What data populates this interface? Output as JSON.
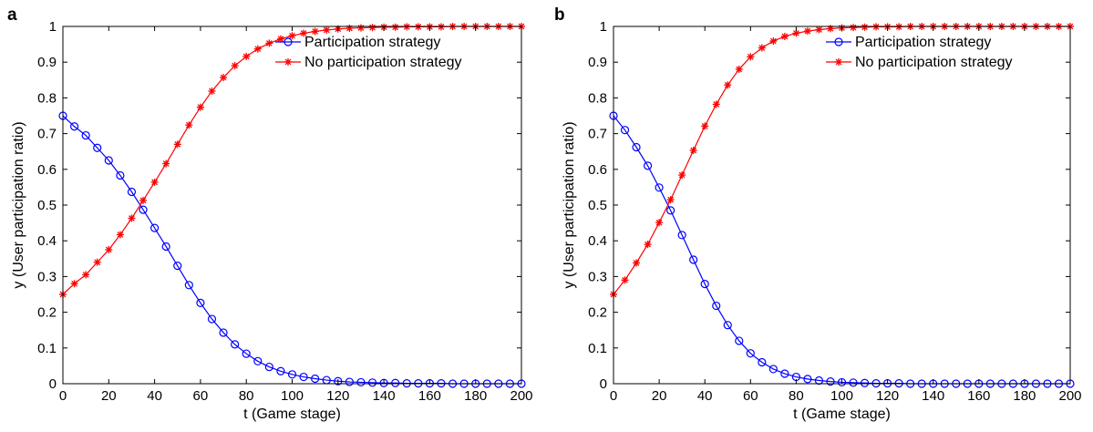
{
  "chart_data": [
    {
      "type": "line",
      "panel_label": "a",
      "xlabel": "t (Game stage)",
      "ylabel": "y (User participation ratio)",
      "xlim": [
        0,
        200
      ],
      "ylim": [
        0,
        1
      ],
      "xticks": [
        "0",
        "20",
        "40",
        "60",
        "80",
        "100",
        "120",
        "140",
        "160",
        "180",
        "200"
      ],
      "yticks": [
        "0",
        "0.1",
        "0.2",
        "0.3",
        "0.4",
        "0.5",
        "0.6",
        "0.7",
        "0.8",
        "0.9",
        "1"
      ],
      "grid": false,
      "legend_position": "top-right",
      "series": [
        {
          "name": "Participation strategy",
          "color": "#0000ff",
          "marker": "circle",
          "x": [
            0,
            5,
            10,
            15,
            20,
            25,
            30,
            35,
            40,
            45,
            50,
            55,
            60,
            65,
            70,
            75,
            80,
            85,
            90,
            95,
            100,
            105,
            110,
            115,
            120,
            125,
            130,
            135,
            140,
            145,
            150,
            155,
            160,
            165,
            170,
            175,
            180,
            185,
            190,
            195,
            200
          ],
          "y": [
            0.75,
            0.72,
            0.695,
            0.66,
            0.625,
            0.583,
            0.537,
            0.487,
            0.436,
            0.384,
            0.33,
            0.276,
            0.226,
            0.181,
            0.143,
            0.11,
            0.084,
            0.063,
            0.047,
            0.035,
            0.026,
            0.019,
            0.014,
            0.01,
            0.007,
            0.005,
            0.004,
            0.003,
            0.002,
            0.002,
            0.001,
            0.001,
            0.001,
            0.001,
            0,
            0,
            0,
            0,
            0,
            0,
            0
          ]
        },
        {
          "name": "No participation strategy",
          "color": "#ff0000",
          "marker": "asterisk",
          "x": [
            0,
            5,
            10,
            15,
            20,
            25,
            30,
            35,
            40,
            45,
            50,
            55,
            60,
            65,
            70,
            75,
            80,
            85,
            90,
            95,
            100,
            105,
            110,
            115,
            120,
            125,
            130,
            135,
            140,
            145,
            150,
            155,
            160,
            165,
            170,
            175,
            180,
            185,
            190,
            195,
            200
          ],
          "y": [
            0.25,
            0.28,
            0.305,
            0.34,
            0.375,
            0.417,
            0.463,
            0.513,
            0.564,
            0.616,
            0.67,
            0.724,
            0.774,
            0.819,
            0.857,
            0.89,
            0.916,
            0.937,
            0.953,
            0.965,
            0.974,
            0.981,
            0.986,
            0.99,
            0.993,
            0.995,
            0.996,
            0.997,
            0.998,
            0.998,
            0.999,
            0.999,
            0.999,
            0.999,
            1,
            1,
            1,
            1,
            1,
            1,
            1
          ]
        }
      ]
    },
    {
      "type": "line",
      "panel_label": "b",
      "xlabel": "t (Game stage)",
      "ylabel": "y (User participation ratio)",
      "xlim": [
        0,
        200
      ],
      "ylim": [
        0,
        1
      ],
      "xticks": [
        "0",
        "20",
        "40",
        "60",
        "80",
        "100",
        "120",
        "140",
        "160",
        "180",
        "200"
      ],
      "yticks": [
        "0",
        "0.1",
        "0.2",
        "0.3",
        "0.4",
        "0.5",
        "0.6",
        "0.7",
        "0.8",
        "0.9",
        "1"
      ],
      "grid": false,
      "legend_position": "top-right",
      "series": [
        {
          "name": "Participation strategy",
          "color": "#0000ff",
          "marker": "circle",
          "x": [
            0,
            5,
            10,
            15,
            20,
            25,
            30,
            35,
            40,
            45,
            50,
            55,
            60,
            65,
            70,
            75,
            80,
            85,
            90,
            95,
            100,
            105,
            110,
            115,
            120,
            125,
            130,
            135,
            140,
            145,
            150,
            155,
            160,
            165,
            170,
            175,
            180,
            185,
            190,
            195,
            200
          ],
          "y": [
            0.75,
            0.71,
            0.662,
            0.61,
            0.549,
            0.485,
            0.416,
            0.347,
            0.279,
            0.218,
            0.164,
            0.12,
            0.085,
            0.06,
            0.041,
            0.028,
            0.019,
            0.013,
            0.009,
            0.006,
            0.004,
            0.003,
            0.002,
            0.001,
            0.001,
            0.001,
            0,
            0,
            0,
            0,
            0,
            0,
            0,
            0,
            0,
            0,
            0,
            0,
            0,
            0,
            0
          ]
        },
        {
          "name": "No participation strategy",
          "color": "#ff0000",
          "marker": "asterisk",
          "x": [
            0,
            5,
            10,
            15,
            20,
            25,
            30,
            35,
            40,
            45,
            50,
            55,
            60,
            65,
            70,
            75,
            80,
            85,
            90,
            95,
            100,
            105,
            110,
            115,
            120,
            125,
            130,
            135,
            140,
            145,
            150,
            155,
            160,
            165,
            170,
            175,
            180,
            185,
            190,
            195,
            200
          ],
          "y": [
            0.25,
            0.29,
            0.338,
            0.39,
            0.451,
            0.515,
            0.584,
            0.653,
            0.721,
            0.782,
            0.836,
            0.88,
            0.915,
            0.94,
            0.959,
            0.972,
            0.981,
            0.987,
            0.991,
            0.994,
            0.996,
            0.997,
            0.998,
            0.999,
            0.999,
            0.999,
            1,
            1,
            1,
            1,
            1,
            1,
            1,
            1,
            1,
            1,
            1,
            1,
            1,
            1,
            1
          ]
        }
      ]
    }
  ]
}
